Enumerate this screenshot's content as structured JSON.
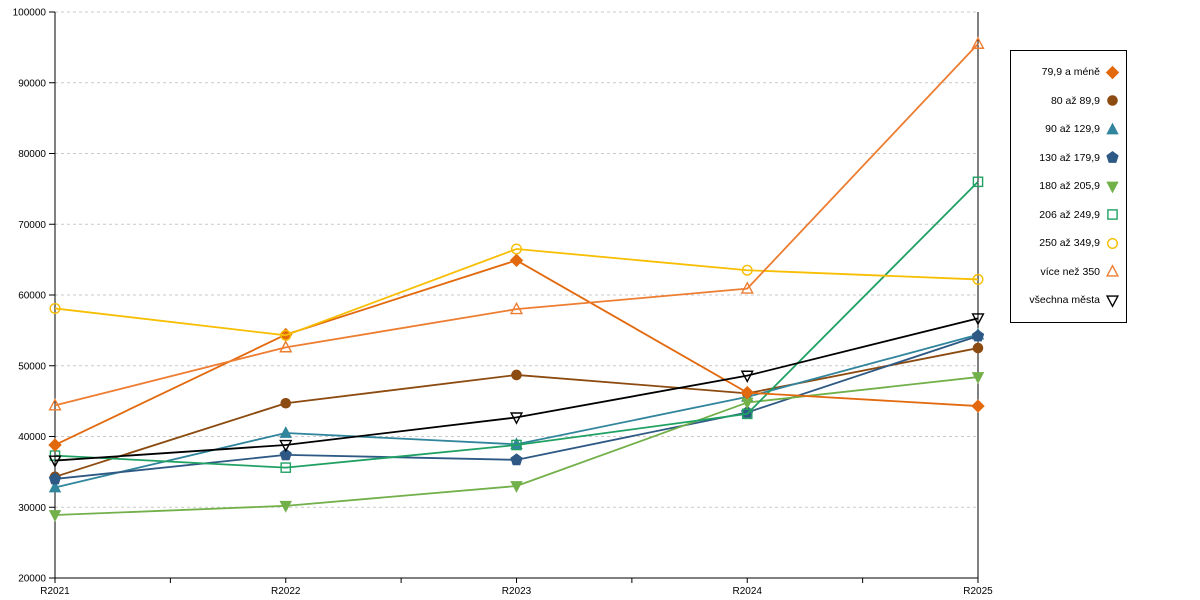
{
  "chart_data": {
    "type": "line",
    "title": "",
    "xlabel": "",
    "ylabel": "",
    "x_categories": [
      "R2021",
      "R2022",
      "R2023",
      "R2024",
      "R2025"
    ],
    "ylim": [
      20000,
      100000
    ],
    "ytick_step": 10000,
    "yticks": [
      "20000",
      "30000",
      "40000",
      "50000",
      "60000",
      "70000",
      "80000",
      "90000",
      "100000"
    ],
    "grid": "horizontal-dashed",
    "gridline_color": "#c9c9c9",
    "axis_color": "#000000",
    "legend_position": "right",
    "series": [
      {
        "name": "79,9 a méně",
        "marker": "diamond",
        "fill": "solid",
        "color": "#E2690D",
        "values": [
          38800,
          54400,
          64900,
          46200,
          44300
        ]
      },
      {
        "name": "80 až 89,9",
        "marker": "circle",
        "fill": "solid",
        "color": "#8C4B10",
        "values": [
          34300,
          44700,
          48700,
          46100,
          52500
        ]
      },
      {
        "name": "90 až 129,9",
        "marker": "triangle-up",
        "fill": "solid",
        "color": "#31859C",
        "values": [
          32800,
          40500,
          38900,
          45600,
          54400
        ]
      },
      {
        "name": "130 až 179,9",
        "marker": "pentagon",
        "fill": "solid",
        "color": "#2E5984",
        "values": [
          34000,
          37400,
          36700,
          43400,
          54200
        ]
      },
      {
        "name": "180 až 205,9",
        "marker": "triangle-down",
        "fill": "solid",
        "color": "#72B04A",
        "values": [
          28900,
          30200,
          33000,
          44800,
          48400
        ]
      },
      {
        "name": "206 až 249,9",
        "marker": "square",
        "fill": "hollow",
        "color": "#20A164",
        "values": [
          37300,
          35600,
          38800,
          43200,
          76000
        ]
      },
      {
        "name": "250 až 349,9",
        "marker": "circle",
        "fill": "hollow",
        "color": "#F7BE02",
        "values": [
          58100,
          54300,
          66500,
          63500,
          62200
        ]
      },
      {
        "name": "více než 350",
        "marker": "triangle-up",
        "fill": "hollow",
        "color": "#ED7D31",
        "values": [
          44400,
          52600,
          58000,
          60900,
          95500
        ]
      },
      {
        "name": "všechna města",
        "marker": "triangle-down",
        "fill": "hollow",
        "color": "#000000",
        "values": [
          36600,
          38800,
          42700,
          48600,
          56700
        ]
      }
    ]
  }
}
